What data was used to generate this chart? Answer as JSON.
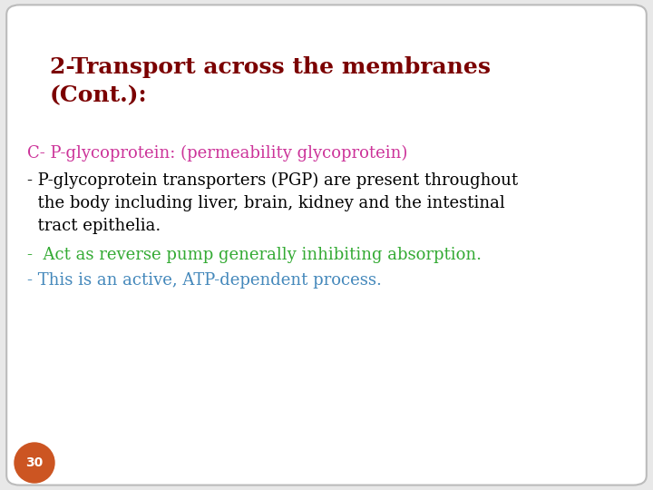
{
  "background_color": "#e8e8e8",
  "slide_bg": "#ffffff",
  "title_line1": "2-Transport across the membranes",
  "title_line2": "(Cont.):",
  "title_color": "#7b0000",
  "title_fontsize": 18,
  "heading_text": "C- P-glycoprotein: (permeability glycoprotein)",
  "heading_color": "#cc3399",
  "heading_fontsize": 13,
  "bullet1_line1": "- P-glycoprotein transporters (PGP) are present throughout",
  "bullet1_line2": "  the body including liver, brain, kidney and the intestinal",
  "bullet1_line3": "  tract epithelia.",
  "bullet1_color": "#000000",
  "bullet1_fontsize": 13,
  "bullet2_text": "-  Act as reverse pump generally inhibiting absorption.",
  "bullet2_color": "#33aa33",
  "bullet2_fontsize": 13,
  "bullet3_text": "- This is an active, ATP-dependent process.",
  "bullet3_color": "#4488bb",
  "bullet3_fontsize": 13,
  "page_number": "30",
  "page_num_bg": "#cc5522",
  "page_num_color": "#ffffff",
  "page_num_fontsize": 10
}
